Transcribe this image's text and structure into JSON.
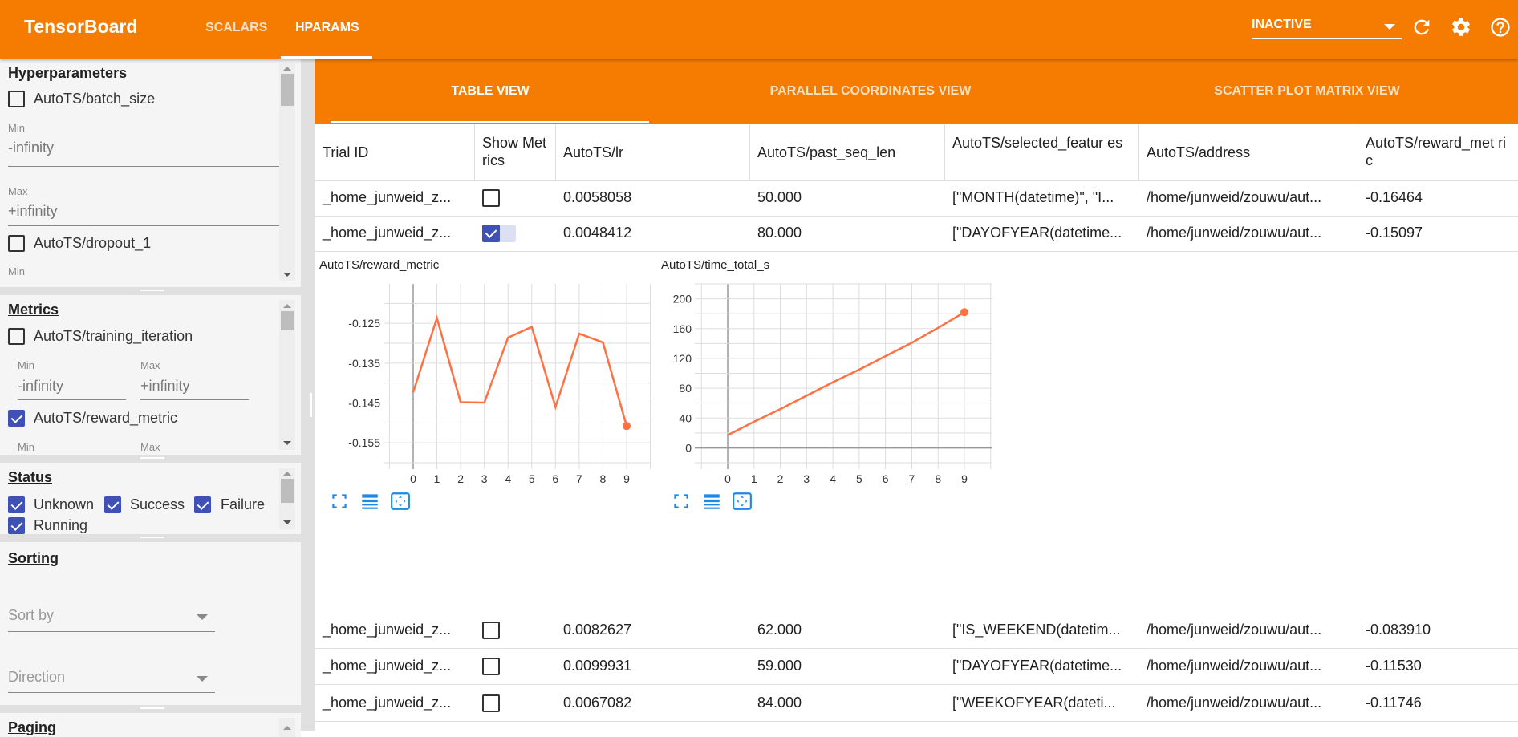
{
  "header": {
    "brand": "TensorBoard",
    "tabs": [
      {
        "label": "SCALARS",
        "active": false
      },
      {
        "label": "HPARAMS",
        "active": true
      }
    ],
    "run_select": "INACTIVE",
    "icons": [
      "refresh-icon",
      "settings-icon",
      "help-icon"
    ],
    "accent_color": "#f57c00"
  },
  "sidebar": {
    "hyperparameters": {
      "title": "Hyperparameters",
      "items": [
        {
          "label": "AutoTS/batch_size",
          "checked": false,
          "min_label": "Min",
          "min": "-infinity",
          "max_label": "Max",
          "max": "+infinity"
        },
        {
          "label": "AutoTS/dropout_1",
          "checked": false,
          "min_label": "Min"
        }
      ]
    },
    "metrics": {
      "title": "Metrics",
      "items": [
        {
          "label": "AutoTS/training_iteration",
          "checked": false,
          "min_label": "Min",
          "min": "-infinity",
          "max_label": "Max",
          "max": "+infinity"
        },
        {
          "label": "AutoTS/reward_metric",
          "checked": true,
          "min_label": "Min",
          "max_label": "Max"
        }
      ]
    },
    "status": {
      "title": "Status",
      "items": [
        {
          "label": "Unknown",
          "checked": true
        },
        {
          "label": "Success",
          "checked": true
        },
        {
          "label": "Failure",
          "checked": true
        },
        {
          "label": "Running",
          "checked": true
        }
      ]
    },
    "sorting": {
      "title": "Sorting",
      "sort_by": "Sort by",
      "direction": "Direction"
    },
    "paging": {
      "title": "Paging"
    }
  },
  "views": {
    "tabs": [
      {
        "label": "TABLE VIEW",
        "active": true
      },
      {
        "label": "PARALLEL COORDINATES VIEW",
        "active": false
      },
      {
        "label": "SCATTER PLOT MATRIX VIEW",
        "active": false
      }
    ]
  },
  "table": {
    "headers": [
      "Trial ID",
      "Show Metrics",
      "AutoTS/lr",
      "AutoTS/past_seq_len",
      "AutoTS/selected_featur es",
      "AutoTS/address",
      "AutoTS/reward_met ric"
    ],
    "rows": [
      {
        "trial": "_home_junweid_z...",
        "show": false,
        "lr": "0.0058058",
        "past_seq_len": "50.000",
        "features": "[\"MONTH(datetime)\", \"I...",
        "address": "/home/junweid/zouwu/aut...",
        "reward": "-0.16464"
      },
      {
        "trial": "_home_junweid_z...",
        "show": true,
        "lr": "0.0048412",
        "past_seq_len": "80.000",
        "features": "[\"DAYOFYEAR(datetime...",
        "address": "/home/junweid/zouwu/aut...",
        "reward": "-0.15097"
      },
      {
        "trial": "_home_junweid_z...",
        "show": false,
        "lr": "0.0082627",
        "past_seq_len": "62.000",
        "features": "[\"IS_WEEKEND(datetim...",
        "address": "/home/junweid/zouwu/aut...",
        "reward": "-0.083910"
      },
      {
        "trial": "_home_junweid_z...",
        "show": false,
        "lr": "0.0099931",
        "past_seq_len": "59.000",
        "features": "[\"DAYOFYEAR(datetime...",
        "address": "/home/junweid/zouwu/aut...",
        "reward": "-0.11530"
      },
      {
        "trial": "_home_junweid_z...",
        "show": false,
        "lr": "0.0067082",
        "past_seq_len": "84.000",
        "features": "[\"WEEKOFYEAR(dateti...",
        "address": "/home/junweid/zouwu/aut...",
        "reward": "-0.11746"
      }
    ]
  },
  "chart_data": [
    {
      "type": "line",
      "title": "AutoTS/reward_metric",
      "x": [
        0,
        1,
        2,
        3,
        4,
        5,
        6,
        7,
        8,
        9
      ],
      "values": [
        -0.1423,
        -0.1237,
        -0.1448,
        -0.1449,
        -0.1286,
        -0.1259,
        -0.146,
        -0.1276,
        -0.1298,
        -0.1508
      ],
      "xlim": [
        -1,
        10
      ],
      "ylim": [
        -0.16,
        -0.1151
      ],
      "xticks": [
        "0",
        "1",
        "2",
        "3",
        "4",
        "5",
        "6",
        "7",
        "8",
        "9"
      ],
      "yticks": [
        "-0.125",
        "-0.135",
        "-0.145",
        "-0.155"
      ],
      "ytick_values": [
        -0.125,
        -0.135,
        -0.145,
        -0.155
      ],
      "grid": true,
      "color": "#ff7043"
    },
    {
      "type": "line",
      "title": "AutoTS/time_total_s",
      "x": [
        0,
        1,
        2,
        3,
        4,
        5,
        6,
        7,
        8,
        9
      ],
      "values": [
        17,
        35,
        52,
        70,
        88,
        105,
        123,
        141,
        161,
        182
      ],
      "xlim": [
        -1,
        10
      ],
      "ylim": [
        -20,
        220
      ],
      "xticks": [
        "0",
        "1",
        "2",
        "3",
        "4",
        "5",
        "6",
        "7",
        "8",
        "9"
      ],
      "yticks": [
        "200",
        "160",
        "120",
        "80",
        "40",
        "0"
      ],
      "ytick_values": [
        200,
        160,
        120,
        80,
        40,
        0
      ],
      "grid": true,
      "color": "#ff7043"
    }
  ]
}
